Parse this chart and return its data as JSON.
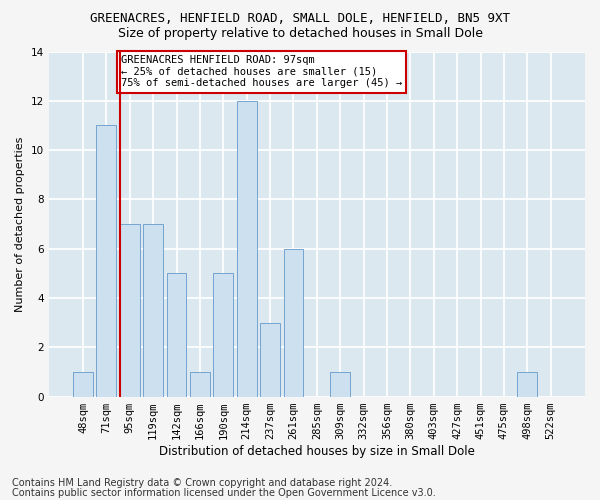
{
  "title": "GREENACRES, HENFIELD ROAD, SMALL DOLE, HENFIELD, BN5 9XT",
  "subtitle": "Size of property relative to detached houses in Small Dole",
  "xlabel": "Distribution of detached houses by size in Small Dole",
  "ylabel": "Number of detached properties",
  "bar_color": "#cce0f0",
  "bar_edge_color": "#6699cc",
  "categories": [
    "48sqm",
    "71sqm",
    "95sqm",
    "119sqm",
    "142sqm",
    "166sqm",
    "190sqm",
    "214sqm",
    "237sqm",
    "261sqm",
    "285sqm",
    "309sqm",
    "332sqm",
    "356sqm",
    "380sqm",
    "403sqm",
    "427sqm",
    "451sqm",
    "475sqm",
    "498sqm",
    "522sqm"
  ],
  "values": [
    1,
    11,
    7,
    7,
    5,
    1,
    5,
    12,
    3,
    6,
    0,
    1,
    0,
    0,
    0,
    0,
    0,
    0,
    0,
    1,
    0
  ],
  "ylim": [
    0,
    14
  ],
  "yticks": [
    0,
    2,
    4,
    6,
    8,
    10,
    12,
    14
  ],
  "property_line_index": 2,
  "property_line_color": "#cc0000",
  "annotation_text": "GREENACRES HENFIELD ROAD: 97sqm\n← 25% of detached houses are smaller (15)\n75% of semi-detached houses are larger (45) →",
  "annotation_box_color": "#ffffff",
  "annotation_box_edge_color": "#cc0000",
  "footer_line1": "Contains HM Land Registry data © Crown copyright and database right 2024.",
  "footer_line2": "Contains public sector information licensed under the Open Government Licence v3.0.",
  "background_color": "#dce8f0",
  "fig_background_color": "#f5f5f5",
  "grid_color": "#ffffff",
  "title_fontsize": 9,
  "subtitle_fontsize": 9,
  "xlabel_fontsize": 8.5,
  "ylabel_fontsize": 8,
  "tick_fontsize": 7.5,
  "annotation_fontsize": 7.5,
  "footer_fontsize": 7
}
